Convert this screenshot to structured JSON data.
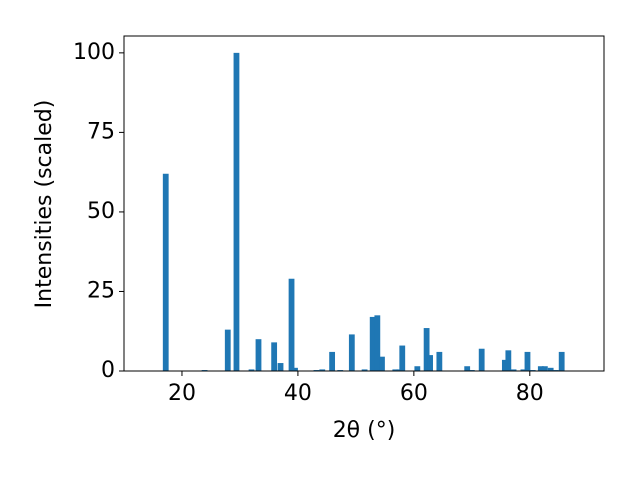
{
  "chart_data": {
    "type": "bar",
    "xlabel": "2θ (°)",
    "ylabel": "Intensities (scaled)",
    "color": "#1f77b4",
    "x": [
      17.2,
      23.9,
      27.9,
      29.4,
      32.0,
      33.2,
      35.9,
      37.0,
      38.9,
      39.5,
      43.2,
      44.2,
      45.9,
      47.3,
      49.3,
      51.5,
      52.9,
      53.7,
      54.5,
      56.8,
      57.5,
      58.0,
      60.6,
      62.2,
      62.8,
      64.4,
      69.2,
      70.0,
      71.7,
      75.7,
      76.3,
      77.2,
      78.9,
      79.6,
      80.5,
      81.9,
      82.6,
      83.6,
      84.5,
      85.5
    ],
    "values": [
      62,
      0.3,
      13,
      100,
      0.5,
      10,
      9,
      2.5,
      29,
      1,
      0.3,
      0.5,
      6,
      0.3,
      11.5,
      0.5,
      17,
      17.5,
      4.5,
      0.5,
      0.5,
      8,
      1.5,
      13.5,
      5,
      6,
      1.5,
      0.3,
      7,
      3.5,
      6.5,
      0.5,
      0.5,
      6,
      0.3,
      1.5,
      1.5,
      1,
      0.3,
      6
    ],
    "xlim": [
      10,
      92.8
    ],
    "ylim": [
      0,
      105.3
    ],
    "xticks": [
      20,
      40,
      60,
      80
    ],
    "yticks": [
      0,
      25,
      50,
      75,
      100
    ]
  }
}
